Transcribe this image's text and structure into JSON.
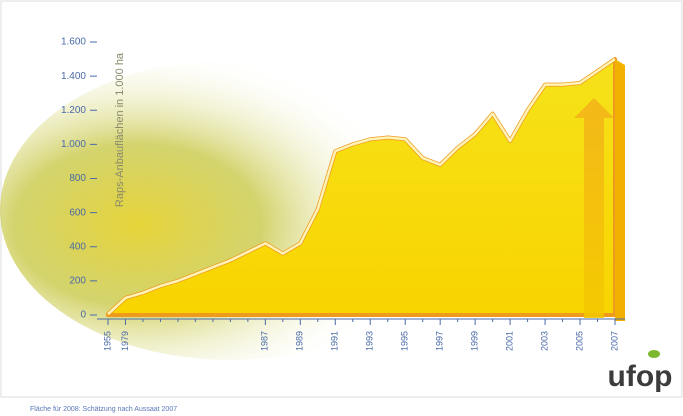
{
  "chart_data": {
    "type": "area",
    "y_axis_label": "Raps-Anbauflächen in 1.000 ha",
    "footnote": "Fläche für 2008: Schätzung nach Aussaat 2007",
    "logo": "ufop",
    "categories": [
      "1955",
      "1979",
      null,
      null,
      null,
      null,
      null,
      null,
      null,
      "1987",
      null,
      "1989",
      null,
      "1991",
      null,
      "1993",
      null,
      "1995",
      null,
      "1997",
      null,
      "1999",
      null,
      "2001",
      null,
      "2003",
      null,
      "2005",
      null,
      "2007"
    ],
    "values": [
      5,
      100,
      130,
      170,
      200,
      240,
      280,
      320,
      370,
      420,
      360,
      420,
      620,
      960,
      1000,
      1030,
      1040,
      1030,
      920,
      880,
      980,
      1060,
      1180,
      1020,
      1200,
      1350,
      1350,
      1360,
      1430,
      1500
    ],
    "color": "#f4d10a",
    "ylim": [
      0,
      1600
    ],
    "yticks": [
      0,
      {
        "value": 200,
        "label": "200"
      },
      {
        "value": 400,
        "label": "400"
      },
      {
        "value": 600,
        "label": "600"
      },
      {
        "value": 800,
        "label": "800"
      },
      {
        "value": 1000,
        "label": "1.000"
      },
      {
        "value": 1200,
        "label": "1.200"
      },
      {
        "value": 1400,
        "label": "1.400"
      },
      {
        "value": 1600,
        "label": "1.600"
      }
    ]
  }
}
